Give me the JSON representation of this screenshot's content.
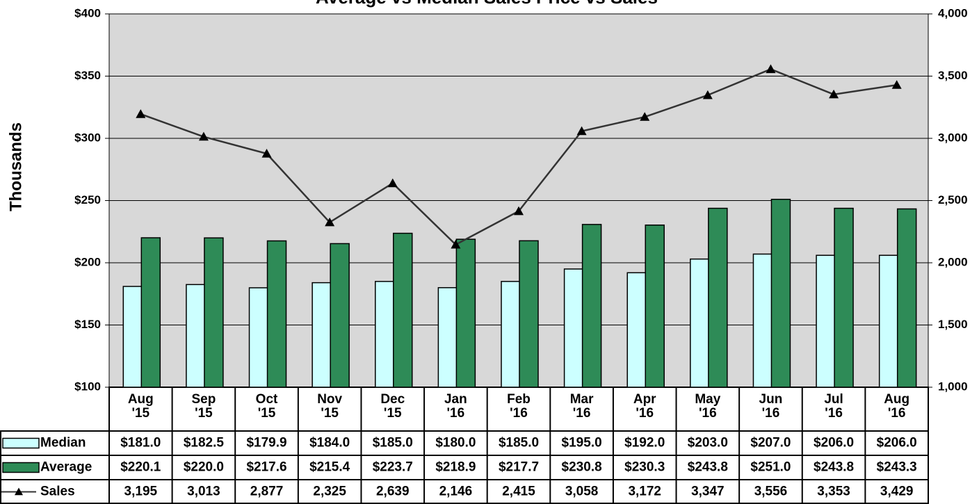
{
  "chart_data": {
    "type": "bar_line_table",
    "title": "Average vs Median Sales Price vs Sales",
    "y_label": "Thousands",
    "categories": [
      "Aug\n'15",
      "Sep\n'15",
      "Oct\n'15",
      "Nov\n'15",
      "Dec\n'15",
      "Jan\n'16",
      "Feb\n'16",
      "Mar\n'16",
      "Apr\n'16",
      "May\n'16",
      "Jun\n'16",
      "Jul\n'16",
      "Aug\n'16"
    ],
    "ylim": [
      100,
      400
    ],
    "yticks": [
      {
        "value": 100,
        "label": "$100"
      },
      {
        "value": 150,
        "label": "$150"
      },
      {
        "value": 200,
        "label": "$200"
      },
      {
        "value": 250,
        "label": "$250"
      },
      {
        "value": 300,
        "label": "$300"
      },
      {
        "value": 350,
        "label": "$350"
      },
      {
        "value": 400,
        "label": "$400"
      }
    ],
    "y2lim": [
      1000,
      4000
    ],
    "y2ticks": [
      {
        "value": 1000,
        "label": "1,000"
      },
      {
        "value": 1500,
        "label": "1,500"
      },
      {
        "value": 2000,
        "label": "2,000"
      },
      {
        "value": 2500,
        "label": "2,500"
      },
      {
        "value": 3000,
        "label": "3,000"
      },
      {
        "value": 3500,
        "label": "3,500"
      },
      {
        "value": 4000,
        "label": "4,000"
      }
    ],
    "grid": true,
    "series": [
      {
        "name": "Median",
        "type": "bar",
        "color": "#ccffff",
        "values": [
          181.0,
          182.5,
          179.9,
          184.0,
          185.0,
          180.0,
          185.0,
          195.0,
          192.0,
          203.0,
          207.0,
          206.0,
          206.0
        ],
        "value_labels": [
          "$181.0",
          "$182.5",
          "$179.9",
          "$184.0",
          "$185.0",
          "$180.0",
          "$185.0",
          "$195.0",
          "$192.0",
          "$203.0",
          "$207.0",
          "$206.0",
          "$206.0"
        ]
      },
      {
        "name": "Average",
        "type": "bar",
        "color": "#2e8b57",
        "values": [
          220.1,
          220.0,
          217.6,
          215.4,
          223.7,
          218.9,
          217.7,
          230.8,
          230.3,
          243.8,
          251.0,
          243.8,
          243.3
        ],
        "value_labels": [
          "$220.1",
          "$220.0",
          "$217.6",
          "$215.4",
          "$223.7",
          "$218.9",
          "$217.7",
          "$230.8",
          "$230.3",
          "$243.8",
          "$251.0",
          "$243.8",
          "$243.3"
        ]
      },
      {
        "name": "Sales",
        "type": "line",
        "axis": "y2",
        "color": "#333333",
        "values": [
          3195,
          3013,
          2877,
          2325,
          2639,
          2146,
          2415,
          3058,
          3172,
          3347,
          3556,
          3353,
          3429
        ],
        "value_labels": [
          "3,195",
          "3,013",
          "2,877",
          "2,325",
          "2,639",
          "2,146",
          "2,415",
          "3,058",
          "3,172",
          "3,347",
          "3,556",
          "3,353",
          "3,429"
        ]
      }
    ]
  }
}
